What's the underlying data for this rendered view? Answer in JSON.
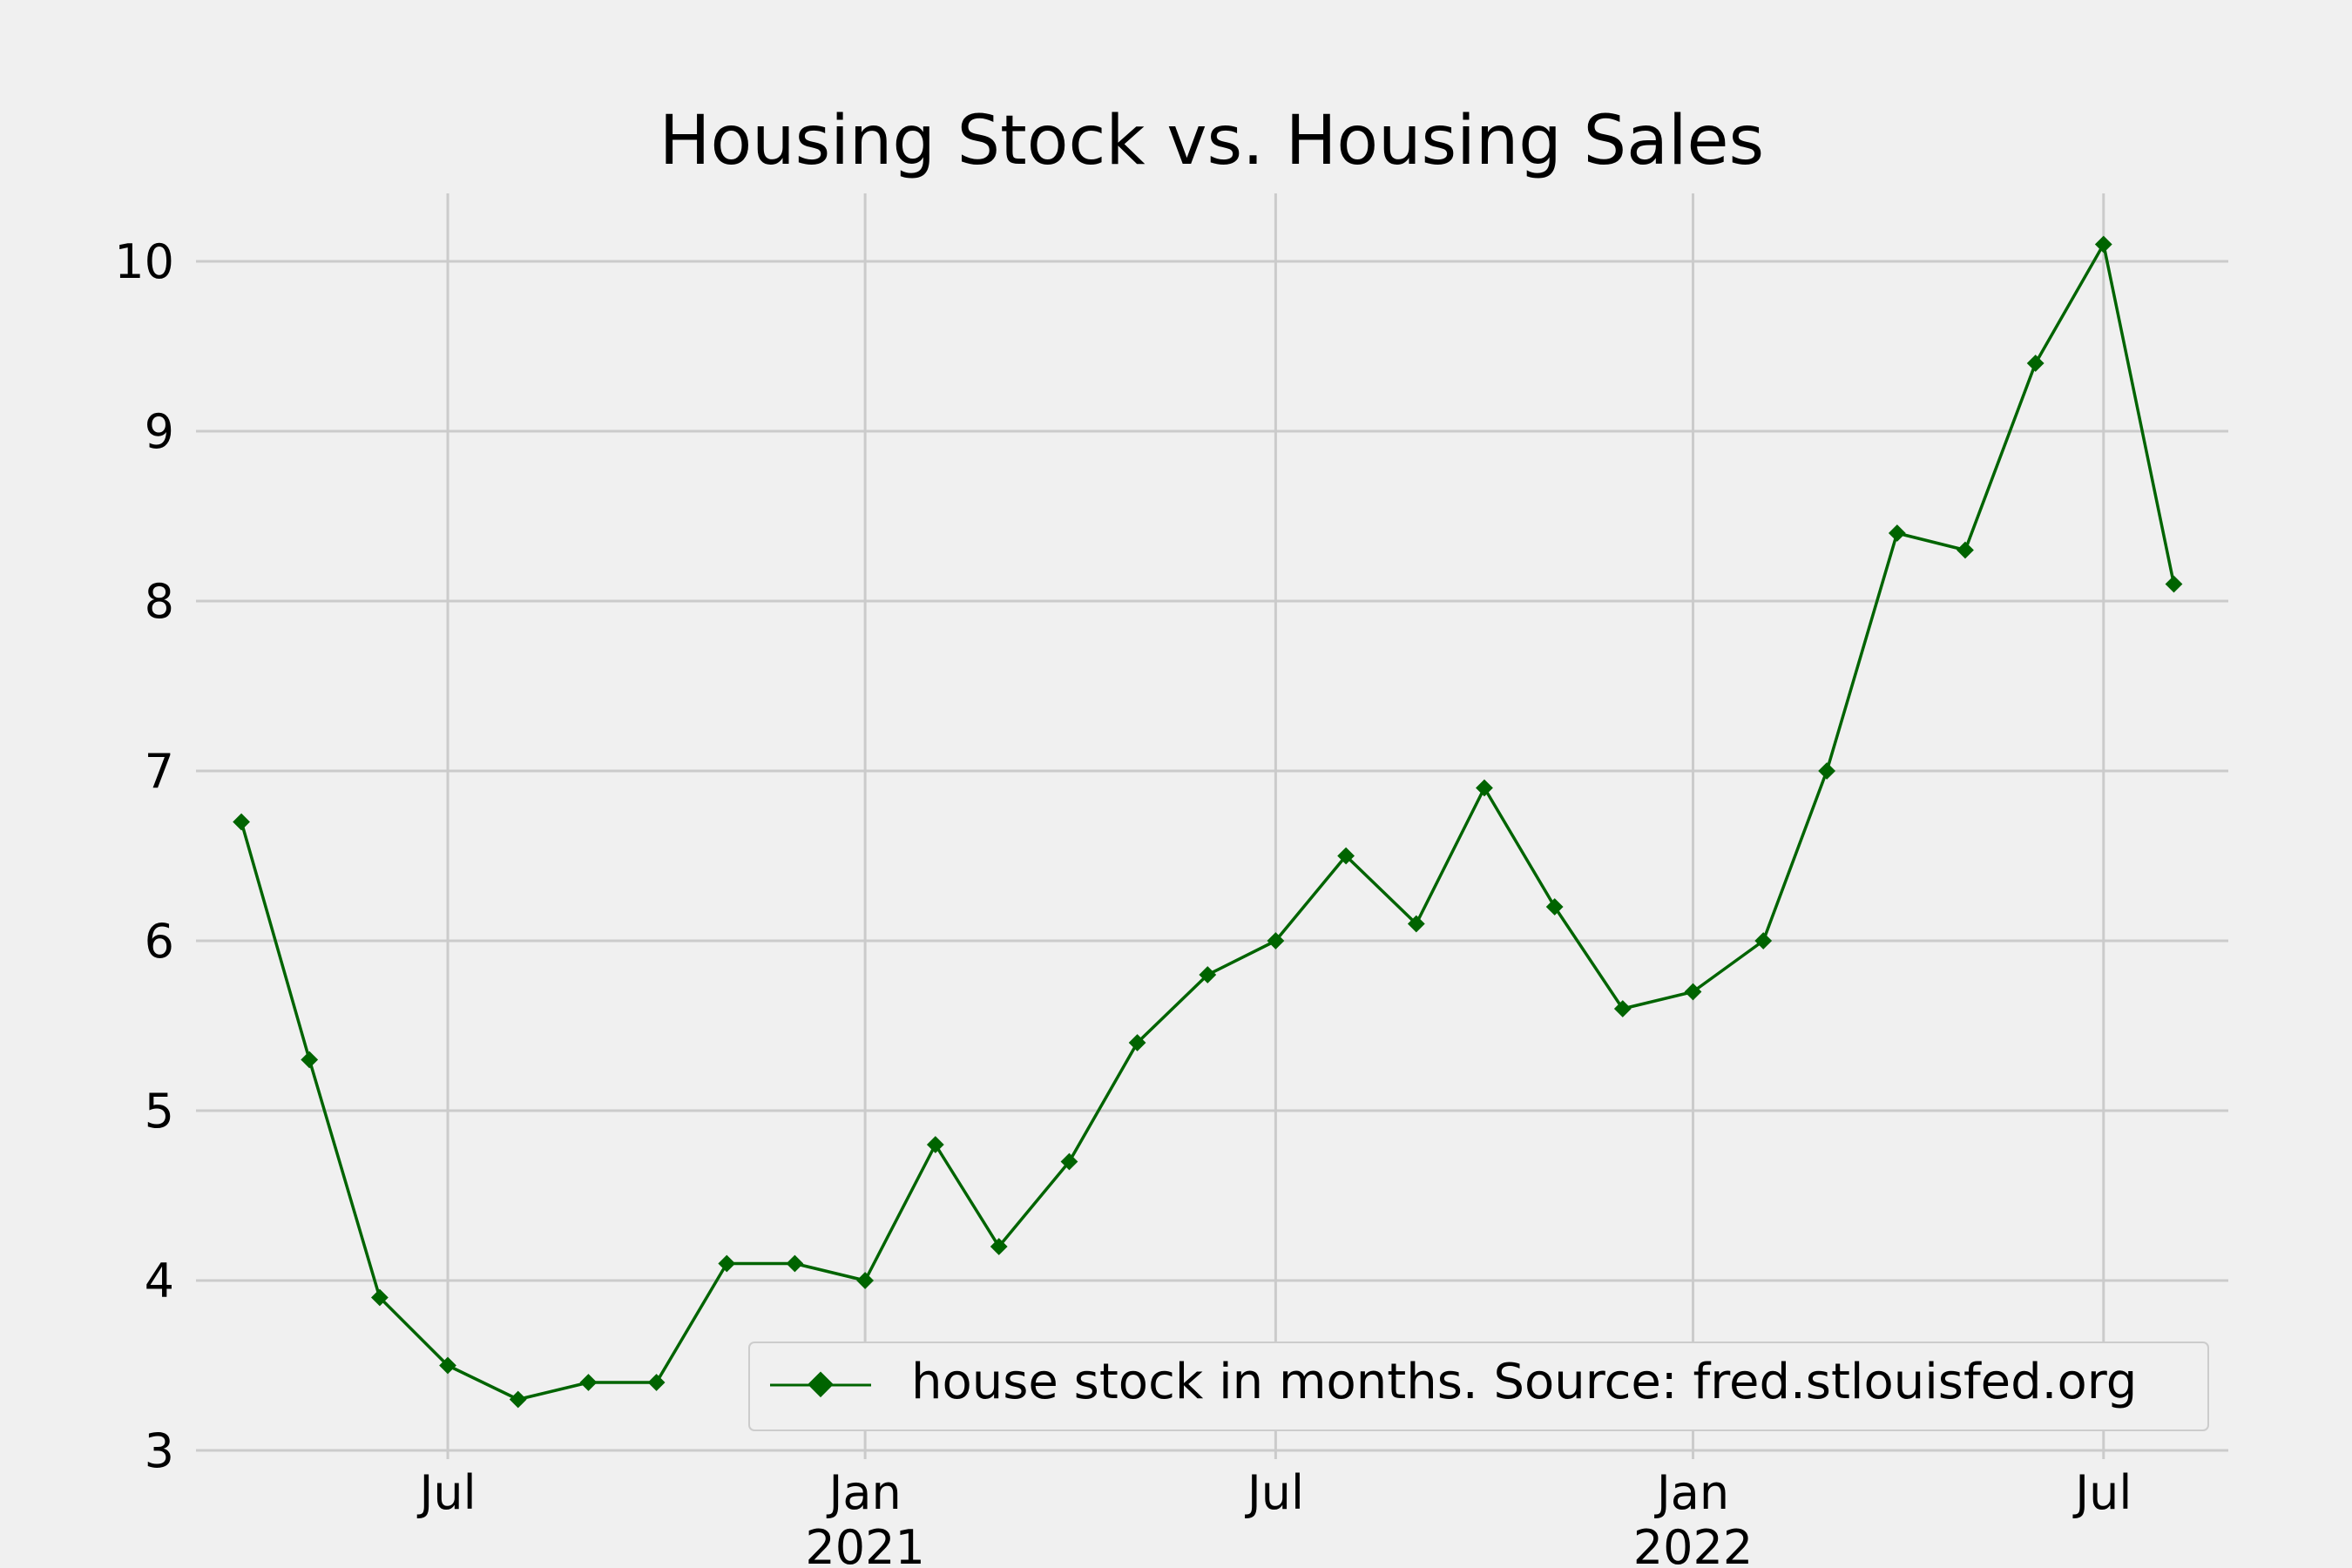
{
  "chart_data": {
    "type": "line",
    "title": "Housing Stock vs. Housing Sales",
    "xlabel": "",
    "ylabel": "",
    "x": [
      "2020-04-01",
      "2020-05-01",
      "2020-06-01",
      "2020-07-01",
      "2020-08-01",
      "2020-09-01",
      "2020-10-01",
      "2020-11-01",
      "2020-12-01",
      "2021-01-01",
      "2021-02-01",
      "2021-03-01",
      "2021-04-01",
      "2021-05-01",
      "2021-06-01",
      "2021-07-01",
      "2021-08-01",
      "2021-09-01",
      "2021-10-01",
      "2021-11-01",
      "2021-12-01",
      "2022-01-01",
      "2022-02-01",
      "2022-03-01",
      "2022-04-01",
      "2022-05-01",
      "2022-06-01",
      "2022-07-01",
      "2022-08-01"
    ],
    "series": [
      {
        "name": "house stock in months. Source: fred.stlouisfed.org",
        "color": "#006400",
        "marker": "diamond",
        "values": [
          6.7,
          5.3,
          3.9,
          3.5,
          3.3,
          3.4,
          3.4,
          4.1,
          4.1,
          4.0,
          4.8,
          4.2,
          4.7,
          5.4,
          5.8,
          6.0,
          6.5,
          6.1,
          6.9,
          6.2,
          5.6,
          5.7,
          6.0,
          7.0,
          8.4,
          8.3,
          9.4,
          10.1,
          8.1
        ]
      }
    ],
    "ylim": [
      3,
      10.4
    ],
    "xlim": [
      "2020-03-12",
      "2022-08-25"
    ],
    "yticks": [
      3,
      4,
      5,
      6,
      7,
      8,
      9,
      10
    ],
    "xticks": [
      {
        "date": "2020-07-01",
        "label": "Jul",
        "year": ""
      },
      {
        "date": "2021-01-01",
        "label": "Jan",
        "year": "2021"
      },
      {
        "date": "2021-07-01",
        "label": "Jul",
        "year": ""
      },
      {
        "date": "2022-01-01",
        "label": "Jan",
        "year": "2022"
      },
      {
        "date": "2022-07-01",
        "label": "Jul",
        "year": ""
      }
    ],
    "grid": true,
    "legend_position": "lower-right",
    "background": "#f0f0f0",
    "grid_color": "#cbcbcb"
  }
}
